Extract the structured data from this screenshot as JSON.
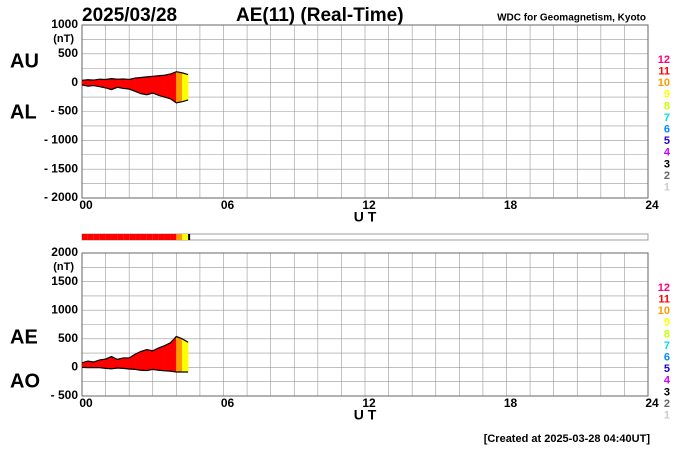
{
  "header": {
    "date": "2025/03/28",
    "title": "AE(11) (Real-Time)",
    "source": "WDC for Geomagnetism, Kyoto"
  },
  "footer": "[Created at 2025-03-28 04:40UT]",
  "station_legend": [
    {
      "label": 12,
      "color": "#ff0080"
    },
    {
      "label": 11,
      "color": "#ff0000"
    },
    {
      "label": 10,
      "color": "#ff9900"
    },
    {
      "label": 9,
      "color": "#ffff00"
    },
    {
      "label": 8,
      "color": "#ccff00"
    },
    {
      "label": 7,
      "color": "#00e0e0"
    },
    {
      "label": 6,
      "color": "#0088ff"
    },
    {
      "label": 5,
      "color": "#2200cc"
    },
    {
      "label": 4,
      "color": "#cc00ff"
    },
    {
      "label": 3,
      "color": "#000000"
    },
    {
      "label": 2,
      "color": "#666666"
    },
    {
      "label": 1,
      "color": "#cccccc"
    }
  ],
  "stations": [
    11,
    11,
    11,
    11,
    11,
    11,
    11,
    11,
    11,
    11,
    11,
    11,
    11,
    11,
    11,
    11,
    10,
    9,
    3
  ],
  "chart_data": [
    {
      "type": "line",
      "y_unit": "(nT)",
      "xlabel": "U T",
      "x": [
        0,
        0.25,
        0.5,
        0.75,
        1,
        1.25,
        1.5,
        1.75,
        2,
        2.25,
        2.5,
        2.75,
        3,
        3.25,
        3.5,
        3.75,
        4,
        4.25,
        4.5
      ],
      "series": [
        {
          "name": "AU",
          "color": "#000000",
          "values": [
            40,
            50,
            45,
            60,
            55,
            70,
            60,
            65,
            55,
            80,
            90,
            100,
            110,
            120,
            130,
            150,
            190,
            170,
            140
          ]
        },
        {
          "name": "AL",
          "color": "#000000",
          "values": [
            -40,
            -60,
            -50,
            -70,
            -90,
            -120,
            -80,
            -100,
            -110,
            -150,
            -190,
            -210,
            -180,
            -220,
            -250,
            -280,
            -350,
            -330,
            -300
          ]
        }
      ],
      "xlim": [
        0,
        24
      ],
      "xticks": [
        {
          "value": 0,
          "label": "00"
        },
        {
          "value": 6,
          "label": "06"
        },
        {
          "value": 12,
          "label": "12"
        },
        {
          "value": 18,
          "label": "18"
        },
        {
          "value": 24,
          "label": "24"
        }
      ],
      "ylim": [
        -2000,
        1000
      ],
      "yticks": [
        {
          "value": -2000,
          "label": "- 2000"
        },
        {
          "value": -1500,
          "label": "- 1500"
        },
        {
          "value": -1000,
          "label": "- 1000"
        },
        {
          "value": -500,
          "label": "- 500"
        },
        0,
        500,
        1000
      ],
      "xgrid_step": 1,
      "ygrid_step": 250
    },
    {
      "type": "line",
      "y_unit": "(nT)",
      "xlabel": "U T",
      "x": [
        0,
        0.25,
        0.5,
        0.75,
        1,
        1.25,
        1.5,
        1.75,
        2,
        2.25,
        2.5,
        2.75,
        3,
        3.25,
        3.5,
        3.75,
        4,
        4.25,
        4.5
      ],
      "series": [
        {
          "name": "AE",
          "color": "#000000",
          "values": [
            80,
            110,
            95,
            130,
            145,
            190,
            140,
            165,
            165,
            230,
            280,
            310,
            290,
            340,
            380,
            430,
            540,
            500,
            440
          ]
        },
        {
          "name": "AO",
          "color": "#000000",
          "values": [
            0,
            -5,
            -2.5,
            -5,
            -17.5,
            -25,
            -10,
            -17.5,
            -27.5,
            -35,
            -50,
            -55,
            -35,
            -50,
            -60,
            -65,
            -80,
            -80,
            -80
          ]
        }
      ],
      "xlim": [
        0,
        24
      ],
      "xticks": [
        {
          "value": 0,
          "label": "00"
        },
        {
          "value": 6,
          "label": "06"
        },
        {
          "value": 12,
          "label": "12"
        },
        {
          "value": 18,
          "label": "18"
        },
        {
          "value": 24,
          "label": "24"
        }
      ],
      "ylim": [
        -500,
        2000
      ],
      "yticks": [
        {
          "value": -500,
          "label": "- 500"
        },
        0,
        500,
        1000,
        1500,
        2000
      ],
      "xgrid_step": 1,
      "ygrid_step": 250
    }
  ]
}
